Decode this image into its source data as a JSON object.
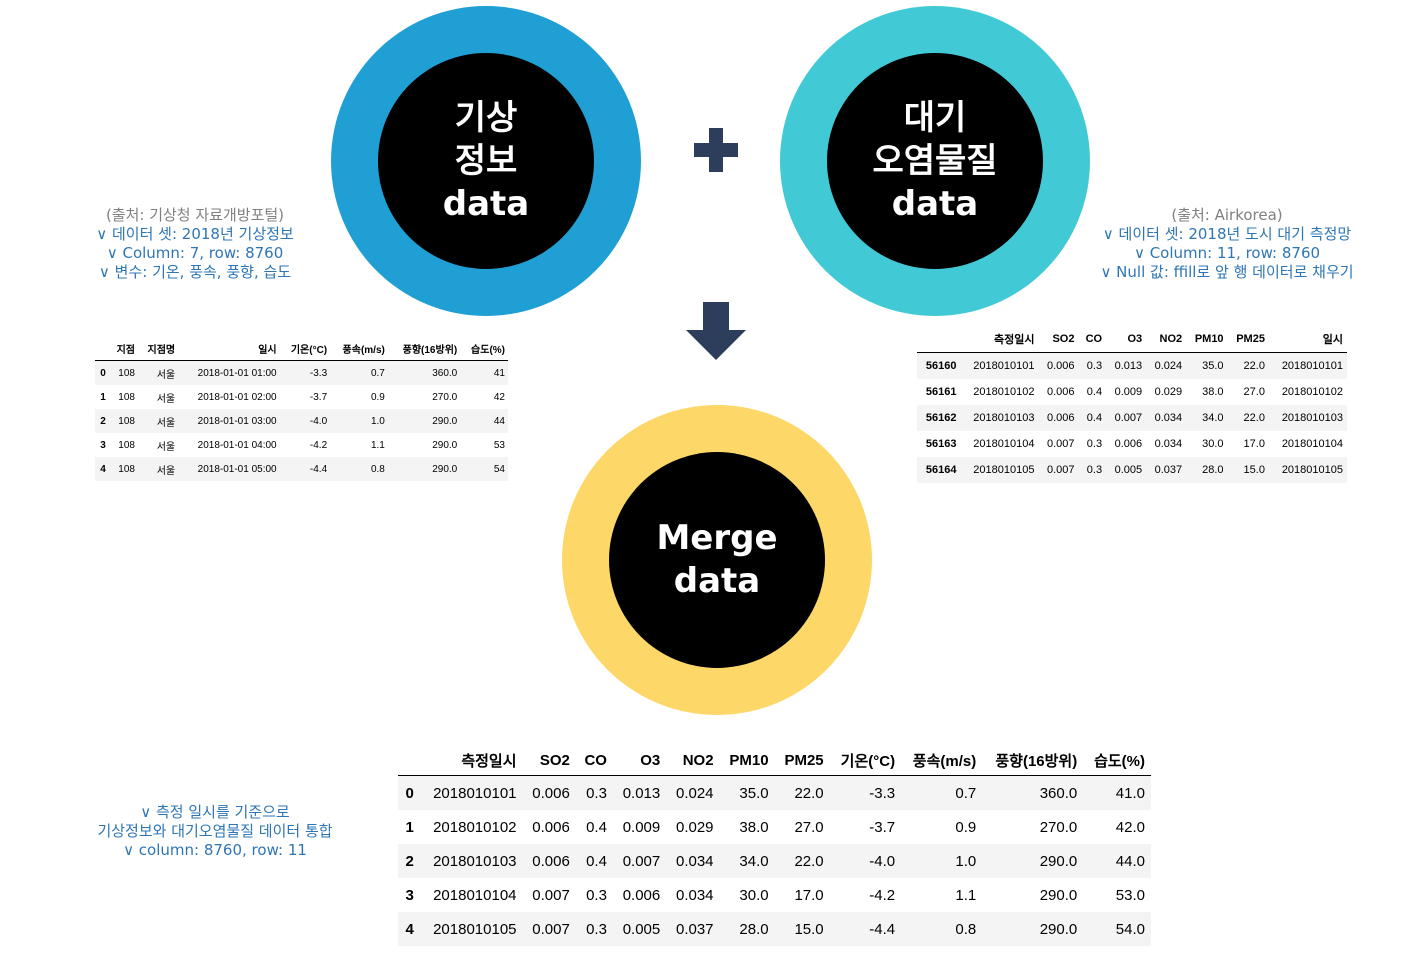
{
  "circles": {
    "weather": "기상\n정보\ndata",
    "air": "대기\n오염물질\ndata",
    "merge": "Merge\ndata"
  },
  "colors": {
    "weather_ring": "#1f9fd4",
    "air_ring": "#42c9d6",
    "merge_ring": "#fdd868",
    "core": "#000000",
    "operator": "#2c3e5c",
    "note_text": "#2e75b6",
    "source_text": "#808080"
  },
  "icons": {
    "plus": "plus-icon",
    "arrow": "arrow-down-icon"
  },
  "notes": {
    "weather": [
      "(출처: 기상청 자료개방포털)",
      "∨ 데이터 셋: 2018년 기상정보",
      "∨ Column: 7, row: 8760",
      "∨ 변수: 기온, 풍속, 풍향, 습도"
    ],
    "air": [
      "(출처: Airkorea)",
      "∨ 데이터 셋: 2018년 도시 대기 측정망",
      "∨ Column: 11, row: 8760",
      "∨ Null 값: ffill로 앞 행 데이터로 채우기"
    ],
    "merge": [
      "∨ 측정 일시를 기준으로",
      "기상정보와 대기오염물질 데이터 통합",
      "∨ column: 8760, row: 11"
    ]
  },
  "weather_table": {
    "headers": [
      "",
      "지점",
      "지점명",
      "일시",
      "기온(°C)",
      "풍속(m/s)",
      "풍향(16방위)",
      "습도(%)"
    ],
    "rows": [
      [
        "0",
        "108",
        "서울",
        "2018-01-01 01:00",
        "-3.3",
        "0.7",
        "360.0",
        "41"
      ],
      [
        "1",
        "108",
        "서울",
        "2018-01-01 02:00",
        "-3.7",
        "0.9",
        "270.0",
        "42"
      ],
      [
        "2",
        "108",
        "서울",
        "2018-01-01 03:00",
        "-4.0",
        "1.0",
        "290.0",
        "44"
      ],
      [
        "3",
        "108",
        "서울",
        "2018-01-01 04:00",
        "-4.2",
        "1.1",
        "290.0",
        "53"
      ],
      [
        "4",
        "108",
        "서울",
        "2018-01-01 05:00",
        "-4.4",
        "0.8",
        "290.0",
        "54"
      ]
    ]
  },
  "air_table": {
    "headers": [
      "",
      "측정일시",
      "SO2",
      "CO",
      "O3",
      "NO2",
      "PM10",
      "PM25",
      "일시"
    ],
    "rows": [
      [
        "56160",
        "2018010101",
        "0.006",
        "0.3",
        "0.013",
        "0.024",
        "35.0",
        "22.0",
        "2018010101"
      ],
      [
        "56161",
        "2018010102",
        "0.006",
        "0.4",
        "0.009",
        "0.029",
        "38.0",
        "27.0",
        "2018010102"
      ],
      [
        "56162",
        "2018010103",
        "0.006",
        "0.4",
        "0.007",
        "0.034",
        "34.0",
        "22.0",
        "2018010103"
      ],
      [
        "56163",
        "2018010104",
        "0.007",
        "0.3",
        "0.006",
        "0.034",
        "30.0",
        "17.0",
        "2018010104"
      ],
      [
        "56164",
        "2018010105",
        "0.007",
        "0.3",
        "0.005",
        "0.037",
        "28.0",
        "15.0",
        "2018010105"
      ]
    ]
  },
  "merge_table": {
    "headers": [
      "",
      "측정일시",
      "SO2",
      "CO",
      "O3",
      "NO2",
      "PM10",
      "PM25",
      "기온(°C)",
      "풍속(m/s)",
      "풍향(16방위)",
      "습도(%)"
    ],
    "rows": [
      [
        "0",
        "2018010101",
        "0.006",
        "0.3",
        "0.013",
        "0.024",
        "35.0",
        "22.0",
        "-3.3",
        "0.7",
        "360.0",
        "41.0"
      ],
      [
        "1",
        "2018010102",
        "0.006",
        "0.4",
        "0.009",
        "0.029",
        "38.0",
        "27.0",
        "-3.7",
        "0.9",
        "270.0",
        "42.0"
      ],
      [
        "2",
        "2018010103",
        "0.006",
        "0.4",
        "0.007",
        "0.034",
        "34.0",
        "22.0",
        "-4.0",
        "1.0",
        "290.0",
        "44.0"
      ],
      [
        "3",
        "2018010104",
        "0.007",
        "0.3",
        "0.006",
        "0.034",
        "30.0",
        "17.0",
        "-4.2",
        "1.1",
        "290.0",
        "53.0"
      ],
      [
        "4",
        "2018010105",
        "0.007",
        "0.3",
        "0.005",
        "0.037",
        "28.0",
        "15.0",
        "-4.4",
        "0.8",
        "290.0",
        "54.0"
      ]
    ]
  }
}
